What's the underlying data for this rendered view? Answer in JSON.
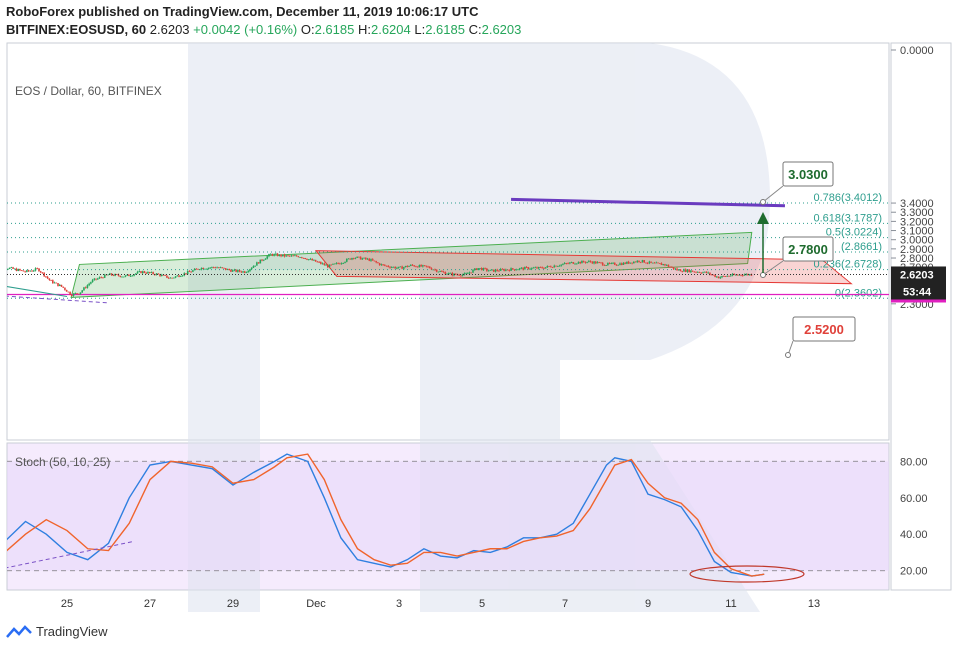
{
  "header": {
    "published": "RoboForex published on TradingView.com, December 11, 2019 10:06:17 UTC",
    "symbol": "BITFINEX:EOSUSD, 60",
    "last": "2.6203",
    "change": "+0.0042 (+0.16%)",
    "open_label": "O:",
    "open": "2.6185",
    "high_label": "H:",
    "high": "2.6204",
    "low_label": "L:",
    "low": "2.6185",
    "close_label": "C:",
    "close": "2.6203"
  },
  "footer": {
    "brand": "TradingView",
    "logo_icon": "tradingview-logo-icon"
  },
  "colors": {
    "up": "#26a65b",
    "down": "#e0413a",
    "fib": "#2e9e8e",
    "magenta": "#e020c0",
    "purple": "#6a3bbf",
    "channel_green": "#4caf50",
    "channel_red": "#e53935",
    "k": "#2f7fe0",
    "d": "#f0642c"
  },
  "chart_data": [
    {
      "type": "candlestick",
      "title": "EOS / Dollar, 60, BITFINEX",
      "x_ticks": [
        {
          "label": "25",
          "day": 25
        },
        {
          "label": "27",
          "day": 27
        },
        {
          "label": "29",
          "day": 29
        },
        {
          "label": "Dec",
          "day": 31
        },
        {
          "label": "3",
          "day": 33
        },
        {
          "label": "5",
          "day": 35
        },
        {
          "label": "7",
          "day": 37
        },
        {
          "label": "9",
          "day": 39
        },
        {
          "label": "11",
          "day": 41
        },
        {
          "label": "13",
          "day": 43
        }
      ],
      "y_ticks": [
        "0.0000",
        "3.4000",
        "3.3000",
        "3.2000",
        "3.1000",
        "3.0000",
        "2.9000",
        "2.8000",
        "2.7000",
        "2.6000",
        "2.5000",
        "2.3000"
      ],
      "y_tick_values": [
        0,
        3.4,
        3.3,
        3.2,
        3.1,
        3.0,
        2.9,
        2.8,
        2.7,
        2.6,
        2.5,
        2.3
      ],
      "ylim": [
        2.24,
        3.53
      ],
      "price_anchors": [
        [
          23.2,
          2.69
        ],
        [
          23.6,
          2.69
        ],
        [
          24.0,
          2.65
        ],
        [
          24.3,
          2.68
        ],
        [
          24.6,
          2.55
        ],
        [
          24.9,
          2.48
        ],
        [
          25.1,
          2.4
        ],
        [
          25.3,
          2.42
        ],
        [
          25.6,
          2.55
        ],
        [
          26.0,
          2.62
        ],
        [
          26.4,
          2.6
        ],
        [
          26.8,
          2.65
        ],
        [
          27.2,
          2.62
        ],
        [
          27.5,
          2.58
        ],
        [
          27.9,
          2.64
        ],
        [
          28.2,
          2.69
        ],
        [
          28.6,
          2.7
        ],
        [
          29.0,
          2.66
        ],
        [
          29.3,
          2.65
        ],
        [
          29.6,
          2.75
        ],
        [
          29.9,
          2.84
        ],
        [
          30.3,
          2.82
        ],
        [
          30.6,
          2.82
        ],
        [
          31.0,
          2.76
        ],
        [
          31.3,
          2.71
        ],
        [
          31.6,
          2.75
        ],
        [
          31.9,
          2.81
        ],
        [
          32.3,
          2.78
        ],
        [
          32.6,
          2.72
        ],
        [
          33.0,
          2.69
        ],
        [
          33.3,
          2.72
        ],
        [
          33.7,
          2.7
        ],
        [
          34.0,
          2.65
        ],
        [
          34.3,
          2.62
        ],
        [
          34.6,
          2.62
        ],
        [
          34.9,
          2.69
        ],
        [
          35.2,
          2.66
        ],
        [
          35.5,
          2.67
        ],
        [
          35.8,
          2.68
        ],
        [
          36.1,
          2.69
        ],
        [
          36.4,
          2.69
        ],
        [
          36.8,
          2.72
        ],
        [
          37.2,
          2.75
        ],
        [
          37.6,
          2.76
        ],
        [
          38.0,
          2.73
        ],
        [
          38.4,
          2.74
        ],
        [
          38.8,
          2.77
        ],
        [
          39.1,
          2.74
        ],
        [
          39.4,
          2.73
        ],
        [
          39.7,
          2.67
        ],
        [
          40.0,
          2.66
        ],
        [
          40.4,
          2.64
        ],
        [
          40.7,
          2.59
        ],
        [
          41.0,
          2.61
        ],
        [
          41.3,
          2.62
        ],
        [
          41.5,
          2.6203
        ]
      ],
      "fib_levels": [
        {
          "label": "0.786(3.4012)",
          "value": 3.4012
        },
        {
          "label": "0.618(3.1787)",
          "value": 3.1787
        },
        {
          "label": "0.5(3.0224)",
          "value": 3.0224
        },
        {
          "label": "(2.8661)",
          "value": 2.8661
        },
        {
          "label": "0.236(2.6728)",
          "value": 2.6728
        },
        {
          "label": "0(2.3602)",
          "value": 2.3602
        }
      ],
      "horizontal_level": {
        "label": "2.4018",
        "value": 2.4018
      },
      "current_price": {
        "label": "2.6203",
        "value": 2.6203,
        "countdown": "53:44"
      },
      "targets": [
        {
          "label": "3.0300",
          "value": 3.03,
          "color": "#1e6b2e"
        },
        {
          "label": "2.7800",
          "value": 2.78,
          "color": "#1e6b2e"
        },
        {
          "label": "2.5200",
          "value": 2.52,
          "color": "#e0413a"
        }
      ],
      "channels": [
        {
          "name": "rising",
          "color": "#4caf50",
          "points": [
            [
              25.1,
              2.37
            ],
            [
              25.3,
              2.73
            ],
            [
              41.5,
              3.08
            ],
            [
              41.4,
              2.74
            ]
          ]
        },
        {
          "name": "falling",
          "color": "#e53935",
          "points": [
            [
              31.0,
              2.88
            ],
            [
              31.5,
              2.6
            ],
            [
              43.9,
              2.52
            ],
            [
              43.2,
              2.78
            ]
          ]
        }
      ],
      "trendlines": [
        {
          "name": "resistance",
          "color": "#6a3bbf",
          "from": [
            35.7,
            3.44
          ],
          "to": [
            42.3,
            3.37
          ]
        },
        {
          "name": "support-cyan",
          "color": "#2e9e8e",
          "from": [
            23.0,
            2.53
          ],
          "to": [
            25.0,
            2.38
          ]
        },
        {
          "name": "support-dash",
          "color": "#7b52c7",
          "from": [
            23.0,
            2.4
          ],
          "to": [
            26.0,
            2.31
          ]
        }
      ]
    },
    {
      "type": "line",
      "title": "Stoch (50, 10, 25)",
      "y_ticks": [
        "80.00",
        "60.00",
        "40.00",
        "20.00"
      ],
      "y_tick_values": [
        80,
        60,
        40,
        20
      ],
      "ylim": [
        12,
        88
      ],
      "dashed_levels": [
        80,
        20
      ],
      "series": [
        {
          "name": "%K",
          "color": "#2f7fe0",
          "values": [
            [
              23.0,
              24
            ],
            [
              23.5,
              36
            ],
            [
              24.0,
              47
            ],
            [
              24.5,
              40
            ],
            [
              25.0,
              30
            ],
            [
              25.5,
              26
            ],
            [
              26.0,
              35
            ],
            [
              26.5,
              60
            ],
            [
              27.0,
              78
            ],
            [
              27.5,
              80
            ],
            [
              28.0,
              78
            ],
            [
              28.5,
              76
            ],
            [
              29.0,
              67
            ],
            [
              29.5,
              74
            ],
            [
              30.0,
              80
            ],
            [
              30.3,
              84
            ],
            [
              30.8,
              80
            ],
            [
              31.2,
              60
            ],
            [
              31.6,
              38
            ],
            [
              32.0,
              26
            ],
            [
              32.4,
              24
            ],
            [
              32.8,
              22
            ],
            [
              33.2,
              26
            ],
            [
              33.6,
              32
            ],
            [
              34.0,
              28
            ],
            [
              34.4,
              27
            ],
            [
              34.8,
              31
            ],
            [
              35.2,
              30
            ],
            [
              35.6,
              33
            ],
            [
              36.0,
              38
            ],
            [
              36.4,
              38
            ],
            [
              36.8,
              40
            ],
            [
              37.2,
              46
            ],
            [
              37.6,
              62
            ],
            [
              38.0,
              78
            ],
            [
              38.2,
              82
            ],
            [
              38.6,
              80
            ],
            [
              39.0,
              62
            ],
            [
              39.4,
              59
            ],
            [
              39.8,
              55
            ],
            [
              40.2,
              42
            ],
            [
              40.6,
              25
            ],
            [
              41.0,
              19
            ],
            [
              41.5,
              17
            ],
            [
              41.8,
              18
            ]
          ]
        },
        {
          "name": "%D",
          "color": "#f0642c",
          "values": [
            [
              23.0,
              22
            ],
            [
              23.5,
              30
            ],
            [
              24.0,
              40
            ],
            [
              24.5,
              48
            ],
            [
              25.0,
              42
            ],
            [
              25.5,
              32
            ],
            [
              26.0,
              31
            ],
            [
              26.5,
              46
            ],
            [
              27.0,
              70
            ],
            [
              27.5,
              80
            ],
            [
              28.0,
              79
            ],
            [
              28.5,
              77
            ],
            [
              29.0,
              68
            ],
            [
              29.5,
              70
            ],
            [
              30.0,
              77
            ],
            [
              30.3,
              82
            ],
            [
              30.8,
              84
            ],
            [
              31.2,
              70
            ],
            [
              31.6,
              48
            ],
            [
              32.0,
              32
            ],
            [
              32.4,
              26
            ],
            [
              32.8,
              23
            ],
            [
              33.2,
              24
            ],
            [
              33.6,
              30
            ],
            [
              34.0,
              30
            ],
            [
              34.4,
              28
            ],
            [
              34.8,
              30
            ],
            [
              35.2,
              32
            ],
            [
              35.6,
              32
            ],
            [
              36.0,
              36
            ],
            [
              36.4,
              38
            ],
            [
              36.8,
              39
            ],
            [
              37.2,
              42
            ],
            [
              37.6,
              54
            ],
            [
              38.0,
              70
            ],
            [
              38.2,
              78
            ],
            [
              38.6,
              81
            ],
            [
              39.0,
              68
            ],
            [
              39.4,
              60
            ],
            [
              39.8,
              57
            ],
            [
              40.2,
              48
            ],
            [
              40.6,
              30
            ],
            [
              41.0,
              21
            ],
            [
              41.5,
              17
            ],
            [
              41.8,
              18
            ]
          ]
        }
      ]
    }
  ]
}
